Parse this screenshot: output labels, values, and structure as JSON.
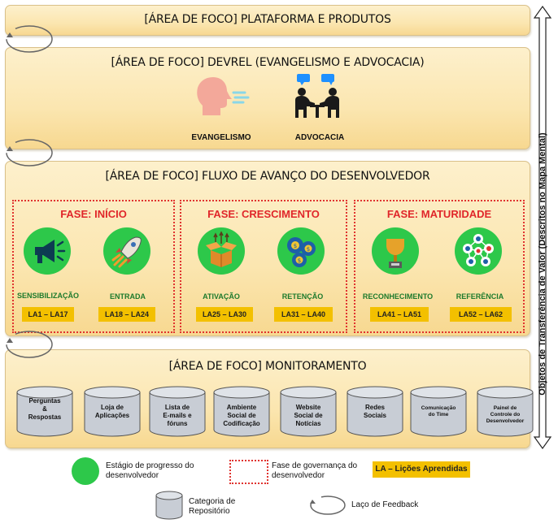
{
  "areas": {
    "plataforma": "[ÁREA DE FOCO] PLATAFORMA E PRODUTOS",
    "devrel": "[ÁREA DE FOCO] DEVREL (EVANGELISMO E ADVOCACIA)",
    "fluxo": "[ÁREA DE FOCO] FLUXO DE AVANÇO DO DESENVOLVEDOR",
    "monitoramento": "[ÁREA DE FOCO] MONITORAMENTO"
  },
  "devrel_items": [
    {
      "label": "EVANGELISMO",
      "icon": "speaking-person-icon"
    },
    {
      "label": "ADVOCACIA",
      "icon": "meeting-people-icon"
    }
  ],
  "phases": [
    {
      "title": "FASE: INÍCIO",
      "stages": [
        {
          "label": "SENSIBILIZAÇÃO",
          "la": "LA1 – LA17",
          "icon": "megaphone-icon"
        },
        {
          "label": "ENTRADA",
          "la": "LA18 – LA24",
          "icon": "rocket-icon"
        }
      ]
    },
    {
      "title": "FASE: CRESCIMENTO",
      "stages": [
        {
          "label": "ATIVAÇÃO",
          "la": "LA25 – LA30",
          "icon": "open-box-icon"
        },
        {
          "label": "RETENÇÃO",
          "la": "LA31 – LA40",
          "icon": "gears-money-icon"
        }
      ]
    },
    {
      "title": "FASE: MATURIDADE",
      "stages": [
        {
          "label": "RECONHECIMENTO",
          "la": "LA41 – LA51",
          "icon": "trophy-icon"
        },
        {
          "label": "REFERÊNCIA",
          "la": "LA52 – LA62",
          "icon": "network-icon"
        }
      ]
    }
  ],
  "repositories": [
    "Perguntas\n&\nRespostas",
    "Loja de\nAplicações",
    "Lista de\nE-mails e\nfóruns",
    "Ambiente\nSocial de\nCodificação",
    "Website\nSocial de\nNotícias",
    "Redes\nSociais",
    "Comunicação\ndo Time",
    "Painel de\nControle do\nDesenvolvedor"
  ],
  "side_label": "Objetos de Transferência de Valor (Descritos no Mapa Mental)",
  "legend": {
    "stage": "Estágio de progresso do desenvolvedor",
    "governance": "Fase de governança do desenvolvedor",
    "la": "LA – Lições Aprendidas",
    "repository": "Categoria de Repositório",
    "feedback": "Laço de Feedback"
  },
  "colors": {
    "band": "#fbe6b0",
    "stage_green": "#2dc84a",
    "phase_border": "#e0332f",
    "la_fill": "#f3c000",
    "repo_fill": "#c8cdd5"
  }
}
